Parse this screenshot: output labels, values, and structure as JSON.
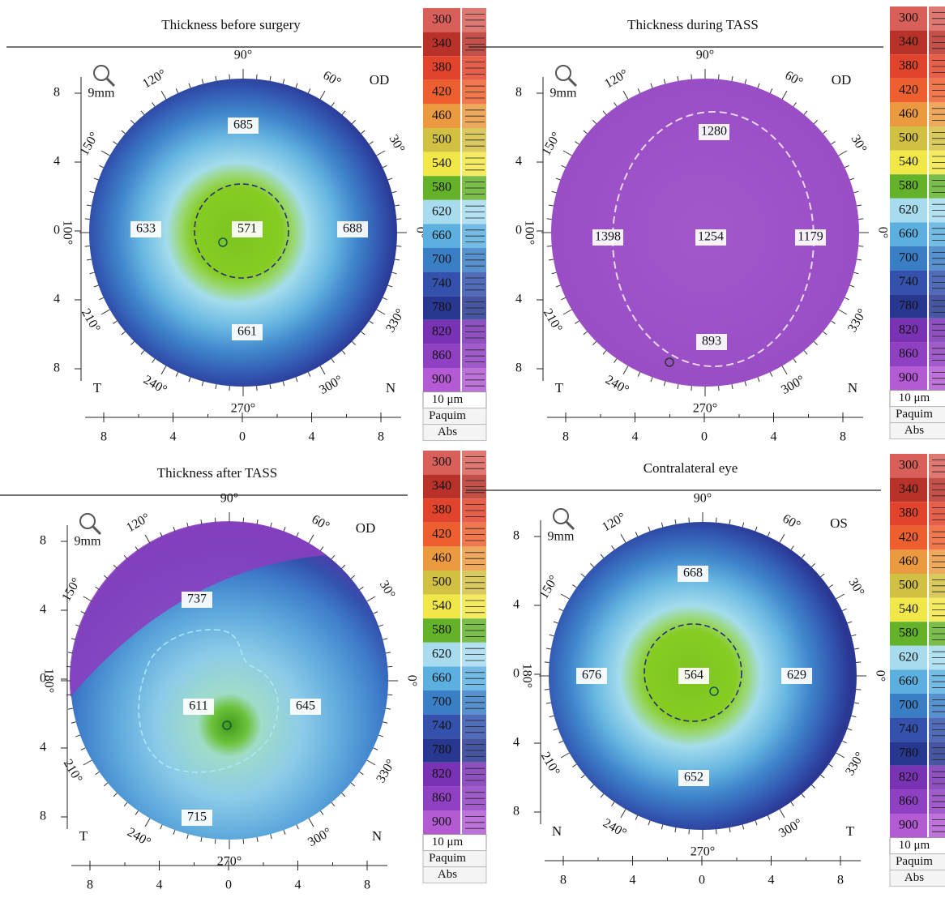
{
  "panels": [
    {
      "title": "Thickness before surgery",
      "eye": "OD",
      "zoom": "9mm",
      "angle_labels": [
        "90°",
        "60°",
        "30°",
        "0°",
        "330°",
        "300°",
        "270°",
        "240°",
        "210°",
        "100°",
        "150°",
        "120°"
      ],
      "left_label": "T",
      "right_label": "N",
      "y_ticks": [
        "8",
        "4",
        "0",
        "4",
        "8"
      ],
      "x_ticks": [
        "8",
        "4",
        "0",
        "4",
        "8"
      ],
      "thickness": {
        "top": 685,
        "left": 633,
        "center": 571,
        "right": 688,
        "bottom": 661
      }
    },
    {
      "title": "Thickness during TASS",
      "eye": "OD",
      "zoom": "9mm",
      "angle_labels": [
        "90°",
        "60°",
        "30°",
        "0°",
        "330°",
        "300°",
        "270°",
        "240°",
        "210°",
        "100°",
        "150°",
        "120°"
      ],
      "left_label": "T",
      "right_label": "N",
      "y_ticks": [
        "8",
        "4",
        "0",
        "4",
        "8"
      ],
      "x_ticks": [
        "8",
        "4",
        "0",
        "4",
        "8"
      ],
      "thickness": {
        "top": 1280,
        "left": 1398,
        "center": 1254,
        "right": 1179,
        "bottom": 893
      }
    },
    {
      "title": "Thickness after TASS",
      "eye": "OD",
      "zoom": "9mm",
      "angle_labels": [
        "90°",
        "60°",
        "30°",
        "0°",
        "330°",
        "300°",
        "270°",
        "240°",
        "210°",
        "180°",
        "150°",
        "120°"
      ],
      "left_label": "T",
      "right_label": "N",
      "y_ticks": [
        "8",
        "4",
        "0",
        "4",
        "8"
      ],
      "x_ticks": [
        "8",
        "4",
        "0",
        "4",
        "8"
      ],
      "thickness": {
        "top": 737,
        "center": 611,
        "right": 645,
        "bottom": 715
      }
    },
    {
      "title": "Contralateral eye",
      "eye": "OS",
      "zoom": "9mm",
      "angle_labels": [
        "90°",
        "60°",
        "30°",
        "0°",
        "330°",
        "300°",
        "270°",
        "240°",
        "210°",
        "180°",
        "150°",
        "120°"
      ],
      "left_label": "N",
      "right_label": "T",
      "y_ticks": [
        "8",
        "4",
        "0",
        "4",
        "8"
      ],
      "x_ticks": [
        "8",
        "4",
        "0",
        "4",
        "8"
      ],
      "thickness": {
        "top": 668,
        "left": 676,
        "center": 564,
        "right": 629,
        "bottom": 652
      }
    }
  ],
  "color_scale": {
    "values": [
      300,
      340,
      380,
      420,
      460,
      500,
      540,
      580,
      620,
      660,
      700,
      740,
      780,
      820,
      860,
      900
    ],
    "colors": [
      "#d9605a",
      "#b8322a",
      "#e2432c",
      "#ee5f30",
      "#ec9a40",
      "#d2c043",
      "#f2e748",
      "#63b22a",
      "#a6dcee",
      "#5cb0e0",
      "#3a7fc6",
      "#3452ad",
      "#283891",
      "#7a32b4",
      "#9040c2",
      "#b35ad4"
    ],
    "unit": "10 μm",
    "labels": [
      "Paquim",
      "Abs"
    ]
  }
}
